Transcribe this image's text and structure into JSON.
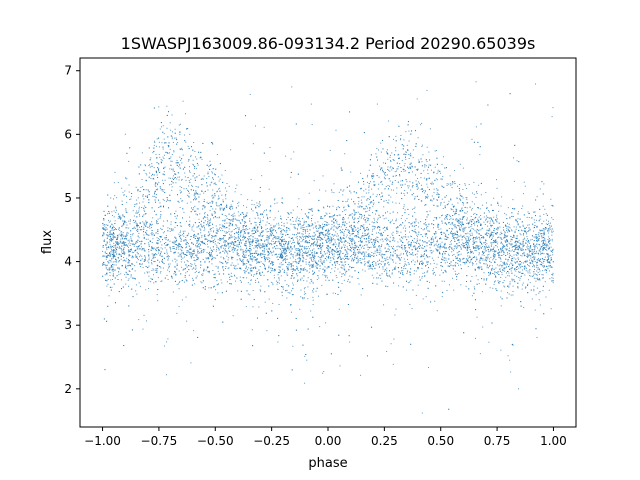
{
  "chart_data": {
    "type": "scatter",
    "title": "1SWASPJ163009.86-093134.2 Period 20290.65039s",
    "xlabel": "phase",
    "ylabel": "flux",
    "xlim": [
      -1.1,
      1.1
    ],
    "ylim": [
      1.4,
      7.2
    ],
    "x_ticks": [
      -1.0,
      -0.75,
      -0.5,
      -0.25,
      0.0,
      0.25,
      0.5,
      0.75,
      1.0
    ],
    "x_tick_labels": [
      "−1.00",
      "−0.75",
      "−0.50",
      "−0.25",
      "0.00",
      "0.25",
      "0.50",
      "0.75",
      "1.00"
    ],
    "y_ticks": [
      2,
      3,
      4,
      5,
      6,
      7
    ],
    "y_tick_labels": [
      "2",
      "3",
      "4",
      "5",
      "6",
      "7"
    ],
    "x_range": [
      -1.0,
      1.0
    ],
    "color": "#1f77b4",
    "grid": false,
    "legend": "none",
    "series": [
      {
        "values_description_x": "phase",
        "points": [
          [
            -1.0,
            4.3
          ],
          [
            -0.98,
            4.1
          ],
          [
            -0.95,
            4.4
          ],
          [
            -0.9,
            4.5
          ],
          [
            -0.85,
            4.6
          ],
          [
            -0.8,
            5.1
          ],
          [
            -0.75,
            5.4
          ],
          [
            -0.7,
            5.6
          ],
          [
            -0.65,
            5.5
          ],
          [
            -0.6,
            5.3
          ],
          [
            -0.55,
            5.1
          ],
          [
            -0.5,
            4.9
          ],
          [
            -0.45,
            4.7
          ],
          [
            -0.4,
            4.5
          ],
          [
            -0.35,
            4.4
          ],
          [
            -0.3,
            4.3
          ],
          [
            -0.25,
            4.2
          ],
          [
            -0.2,
            4.1
          ],
          [
            -0.15,
            4.1
          ],
          [
            -0.1,
            4.2
          ],
          [
            -0.05,
            4.2
          ],
          [
            0.0,
            4.3
          ],
          [
            0.05,
            4.4
          ],
          [
            0.1,
            4.5
          ],
          [
            0.15,
            4.7
          ],
          [
            0.2,
            5.0
          ],
          [
            0.25,
            5.3
          ],
          [
            0.3,
            5.5
          ],
          [
            0.35,
            5.6
          ],
          [
            0.4,
            5.4
          ],
          [
            0.45,
            5.2
          ],
          [
            0.5,
            5.0
          ],
          [
            0.55,
            4.8
          ],
          [
            0.6,
            4.6
          ],
          [
            0.65,
            4.5
          ],
          [
            0.7,
            4.3
          ],
          [
            0.75,
            4.2
          ],
          [
            0.8,
            4.1
          ],
          [
            0.85,
            4.2
          ],
          [
            0.9,
            4.2
          ],
          [
            0.95,
            4.3
          ],
          [
            1.0,
            4.3
          ]
        ]
      }
    ]
  }
}
